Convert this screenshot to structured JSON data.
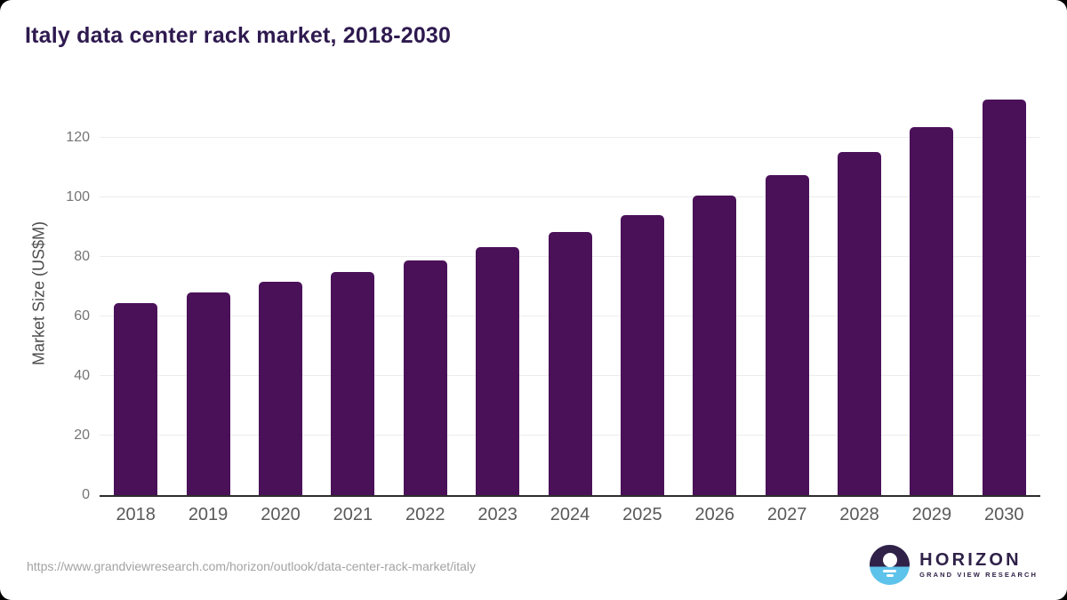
{
  "header": {
    "title": "Italy data center rack market, 2018-2030"
  },
  "chart_data": {
    "type": "bar",
    "title": "Italy data center rack market, 2018-2030",
    "categories": [
      "2018",
      "2019",
      "2020",
      "2021",
      "2022",
      "2023",
      "2024",
      "2025",
      "2026",
      "2027",
      "2028",
      "2029",
      "2030"
    ],
    "values": [
      64.6,
      68.2,
      71.6,
      75.0,
      79.0,
      83.4,
      88.3,
      94.2,
      100.8,
      107.5,
      115.2,
      123.6,
      132.9
    ],
    "xlabel": "",
    "ylabel": "Market Size (US$M)",
    "ylim": [
      0,
      135
    ],
    "yticks": [
      0,
      20,
      40,
      60,
      80,
      100,
      120
    ],
    "grid": true,
    "legend": false,
    "bar_color": "#4a1159"
  },
  "theme": {
    "bar": "#4a1159",
    "title": "#2e1a4f",
    "axis": "#2d2d2d",
    "grid": "#ececec",
    "tick": "#757575",
    "xlabel": "#595959",
    "ylabeltxt": "#4d4d4d",
    "url": "#a3a3a3",
    "logo_purple": "#2f2148",
    "logo_blue": "#5ec3ea"
  },
  "footer": {
    "source_url": "https://www.grandviewresearch.com/horizon/outlook/data-center-rack-market/italy",
    "logo": {
      "name": "HORIZON",
      "subtitle": "GRAND VIEW RESEARCH"
    }
  }
}
